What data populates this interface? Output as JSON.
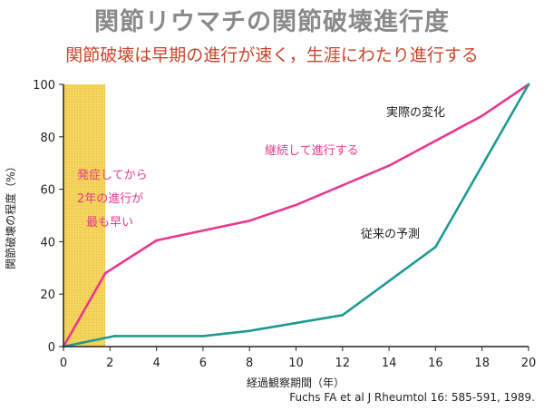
{
  "title": "関節リウマチの関節破壊進行度",
  "subtitle": "関節破壊は早期の進行が速く，生涯にわたり進行する",
  "citation": "Fuchs FA et al J Rheumtol 16: 585-591, 1989.",
  "colors": {
    "actual": "#e8388f",
    "predicted": "#1f9a94",
    "early_band": "#f5d55f",
    "title": "#8a8a8a",
    "subtitle": "#c8452a"
  },
  "chart_data": {
    "type": "line",
    "xlabel": "経過観察期間（年）",
    "ylabel": "関節破壊の程度（%）",
    "xlim": [
      0,
      20
    ],
    "ylim": [
      0,
      100
    ],
    "xticks": [
      0,
      2,
      4,
      6,
      8,
      10,
      12,
      14,
      16,
      18,
      20
    ],
    "yticks": [
      0,
      20,
      40,
      60,
      80,
      100
    ],
    "grid": false,
    "highlight_band": {
      "x_from": 0,
      "x_to": 1.8
    },
    "series": [
      {
        "name": "実際の変化",
        "x": [
          0,
          1.8,
          4,
          8,
          10,
          14,
          18,
          20
        ],
        "y": [
          0,
          28,
          40.5,
          48,
          54,
          69,
          88,
          100
        ]
      },
      {
        "name": "従来の予測",
        "x": [
          0,
          2.2,
          6,
          8,
          12,
          16,
          20
        ],
        "y": [
          0,
          4,
          4,
          6,
          12,
          38,
          100
        ]
      }
    ],
    "annotations": [
      {
        "text": "継続して進行する"
      },
      {
        "text": "発症してから"
      },
      {
        "text": "2年の進行が"
      },
      {
        "text": "最も早い"
      }
    ]
  }
}
